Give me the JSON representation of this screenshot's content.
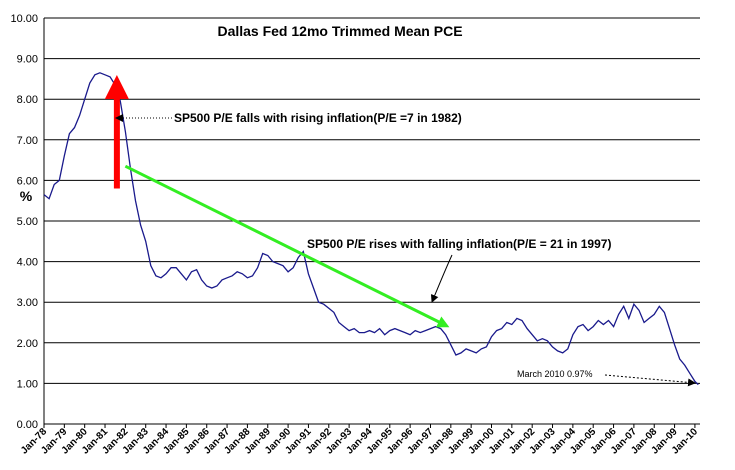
{
  "chart_data": {
    "type": "line",
    "title": "Dallas Fed 12mo Trimmed Mean PCE",
    "ylabel": "%",
    "xlabel": "",
    "ylim": [
      0,
      10
    ],
    "xlim": [
      "1978-01",
      "2010-04"
    ],
    "y_ticks": [
      "0.00",
      "1.00",
      "2.00",
      "3.00",
      "4.00",
      "5.00",
      "6.00",
      "7.00",
      "8.00",
      "9.00",
      "10.00"
    ],
    "x_ticks": [
      {
        "label": "Jan-78",
        "x": "1978-01"
      },
      {
        "label": "Jan-79",
        "x": "1979-01"
      },
      {
        "label": "Jan-80",
        "x": "1980-01"
      },
      {
        "label": "Jan-81",
        "x": "1981-01"
      },
      {
        "label": "Jan-82",
        "x": "1982-01"
      },
      {
        "label": "Jan-83",
        "x": "1983-01"
      },
      {
        "label": "Jan-84",
        "x": "1984-01"
      },
      {
        "label": "Jan-85",
        "x": "1985-01"
      },
      {
        "label": "Jan-86",
        "x": "1986-01"
      },
      {
        "label": "Jan-87",
        "x": "1987-01"
      },
      {
        "label": "Jan-88",
        "x": "1988-01"
      },
      {
        "label": "Jan-89",
        "x": "1989-01"
      },
      {
        "label": "Jan-90",
        "x": "1990-01"
      },
      {
        "label": "Jan-91",
        "x": "1991-01"
      },
      {
        "label": "Jan-92",
        "x": "1992-01"
      },
      {
        "label": "Jan-93",
        "x": "1993-01"
      },
      {
        "label": "Jan-94",
        "x": "1994-01"
      },
      {
        "label": "Jan-95",
        "x": "1995-01"
      },
      {
        "label": "Jan-96",
        "x": "1996-01"
      },
      {
        "label": "Jan-97",
        "x": "1997-01"
      },
      {
        "label": "Jan-98",
        "x": "1998-01"
      },
      {
        "label": "Jan-99",
        "x": "1999-01"
      },
      {
        "label": "Jan-00",
        "x": "2000-01"
      },
      {
        "label": "Jan-01",
        "x": "2001-01"
      },
      {
        "label": "Jan-02",
        "x": "2002-01"
      },
      {
        "label": "Jan-03",
        "x": "2003-01"
      },
      {
        "label": "Jan-04",
        "x": "2004-01"
      },
      {
        "label": "Jan-05",
        "x": "2005-01"
      },
      {
        "label": "Jan-06",
        "x": "2006-01"
      },
      {
        "label": "Jan-07",
        "x": "2007-01"
      },
      {
        "label": "Jan-08",
        "x": "2008-01"
      },
      {
        "label": "Jan-09",
        "x": "2009-01"
      },
      {
        "label": "Jan-10",
        "x": "2010-01"
      }
    ],
    "grid": "horizontal",
    "series": [
      {
        "color": "#1a1a8c",
        "points": [
          [
            "1978-01",
            5.65
          ],
          [
            "1978-04",
            5.55
          ],
          [
            "1978-07",
            5.9
          ],
          [
            "1978-10",
            6.0
          ],
          [
            "1979-01",
            6.6
          ],
          [
            "1979-04",
            7.15
          ],
          [
            "1979-07",
            7.3
          ],
          [
            "1979-10",
            7.6
          ],
          [
            "1980-01",
            8.0
          ],
          [
            "1980-04",
            8.4
          ],
          [
            "1980-07",
            8.6
          ],
          [
            "1980-10",
            8.65
          ],
          [
            "1981-01",
            8.6
          ],
          [
            "1981-04",
            8.55
          ],
          [
            "1981-07",
            8.35
          ],
          [
            "1981-10",
            7.95
          ],
          [
            "1982-01",
            7.2
          ],
          [
            "1982-04",
            6.3
          ],
          [
            "1982-07",
            5.5
          ],
          [
            "1982-10",
            4.9
          ],
          [
            "1983-01",
            4.5
          ],
          [
            "1983-04",
            3.9
          ],
          [
            "1983-07",
            3.65
          ],
          [
            "1983-10",
            3.6
          ],
          [
            "1984-01",
            3.7
          ],
          [
            "1984-04",
            3.85
          ],
          [
            "1984-07",
            3.85
          ],
          [
            "1984-10",
            3.7
          ],
          [
            "1985-01",
            3.55
          ],
          [
            "1985-04",
            3.75
          ],
          [
            "1985-07",
            3.8
          ],
          [
            "1985-10",
            3.55
          ],
          [
            "1986-01",
            3.4
          ],
          [
            "1986-04",
            3.35
          ],
          [
            "1986-07",
            3.4
          ],
          [
            "1986-10",
            3.55
          ],
          [
            "1987-01",
            3.6
          ],
          [
            "1987-04",
            3.65
          ],
          [
            "1987-07",
            3.75
          ],
          [
            "1987-10",
            3.7
          ],
          [
            "1988-01",
            3.6
          ],
          [
            "1988-04",
            3.65
          ],
          [
            "1988-07",
            3.85
          ],
          [
            "1988-10",
            4.2
          ],
          [
            "1989-01",
            4.15
          ],
          [
            "1989-04",
            4.0
          ],
          [
            "1989-07",
            3.95
          ],
          [
            "1989-10",
            3.9
          ],
          [
            "1990-01",
            3.75
          ],
          [
            "1990-04",
            3.85
          ],
          [
            "1990-07",
            4.1
          ],
          [
            "1990-10",
            4.25
          ],
          [
            "1991-01",
            3.7
          ],
          [
            "1991-04",
            3.35
          ],
          [
            "1991-07",
            3.0
          ],
          [
            "1991-10",
            2.95
          ],
          [
            "1992-01",
            2.85
          ],
          [
            "1992-04",
            2.75
          ],
          [
            "1992-07",
            2.5
          ],
          [
            "1992-10",
            2.4
          ],
          [
            "1993-01",
            2.3
          ],
          [
            "1993-04",
            2.35
          ],
          [
            "1993-07",
            2.25
          ],
          [
            "1993-10",
            2.25
          ],
          [
            "1994-01",
            2.3
          ],
          [
            "1994-04",
            2.25
          ],
          [
            "1994-07",
            2.35
          ],
          [
            "1994-10",
            2.2
          ],
          [
            "1995-01",
            2.3
          ],
          [
            "1995-04",
            2.35
          ],
          [
            "1995-07",
            2.3
          ],
          [
            "1995-10",
            2.25
          ],
          [
            "1996-01",
            2.2
          ],
          [
            "1996-04",
            2.3
          ],
          [
            "1996-07",
            2.25
          ],
          [
            "1996-10",
            2.3
          ],
          [
            "1997-01",
            2.35
          ],
          [
            "1997-04",
            2.4
          ],
          [
            "1997-07",
            2.35
          ],
          [
            "1997-10",
            2.2
          ],
          [
            "1998-01",
            1.95
          ],
          [
            "1998-04",
            1.7
          ],
          [
            "1998-07",
            1.75
          ],
          [
            "1998-10",
            1.85
          ],
          [
            "1999-01",
            1.8
          ],
          [
            "1999-04",
            1.75
          ],
          [
            "1999-07",
            1.85
          ],
          [
            "1999-10",
            1.9
          ],
          [
            "2000-01",
            2.15
          ],
          [
            "2000-04",
            2.3
          ],
          [
            "2000-07",
            2.35
          ],
          [
            "2000-10",
            2.5
          ],
          [
            "2001-01",
            2.45
          ],
          [
            "2001-04",
            2.6
          ],
          [
            "2001-07",
            2.55
          ],
          [
            "2001-10",
            2.35
          ],
          [
            "2002-01",
            2.2
          ],
          [
            "2002-04",
            2.05
          ],
          [
            "2002-07",
            2.1
          ],
          [
            "2002-10",
            2.05
          ],
          [
            "2003-01",
            1.9
          ],
          [
            "2003-04",
            1.8
          ],
          [
            "2003-07",
            1.75
          ],
          [
            "2003-10",
            1.85
          ],
          [
            "2004-01",
            2.2
          ],
          [
            "2004-04",
            2.4
          ],
          [
            "2004-07",
            2.45
          ],
          [
            "2004-10",
            2.3
          ],
          [
            "2005-01",
            2.4
          ],
          [
            "2005-04",
            2.55
          ],
          [
            "2005-07",
            2.45
          ],
          [
            "2005-10",
            2.55
          ],
          [
            "2006-01",
            2.4
          ],
          [
            "2006-04",
            2.7
          ],
          [
            "2006-07",
            2.9
          ],
          [
            "2006-10",
            2.6
          ],
          [
            "2007-01",
            2.95
          ],
          [
            "2007-04",
            2.8
          ],
          [
            "2007-07",
            2.5
          ],
          [
            "2007-10",
            2.6
          ],
          [
            "2008-01",
            2.7
          ],
          [
            "2008-04",
            2.9
          ],
          [
            "2008-07",
            2.75
          ],
          [
            "2008-10",
            2.35
          ],
          [
            "2009-01",
            1.95
          ],
          [
            "2009-04",
            1.6
          ],
          [
            "2009-07",
            1.45
          ],
          [
            "2009-10",
            1.25
          ],
          [
            "2010-01",
            1.05
          ],
          [
            "2010-03",
            0.97
          ]
        ]
      }
    ],
    "annotations": [
      {
        "text": "SP500 P/E falls with rising inflation(P/E =7 in 1982)",
        "color": "#ff0000",
        "arrow": "up",
        "from": [
          "1981-08",
          5.8
        ],
        "to": [
          "1981-08",
          8.3
        ]
      },
      {
        "text": "SP500 P/E rises with falling inflation(P/E = 21 in 1997)",
        "color": "#33ee22",
        "arrow": "down-right",
        "from": [
          "1982-01",
          6.35
        ],
        "to": [
          "1997-09",
          2.45
        ]
      },
      {
        "text": "March 2010 0.97%",
        "value": 0.97
      }
    ]
  }
}
